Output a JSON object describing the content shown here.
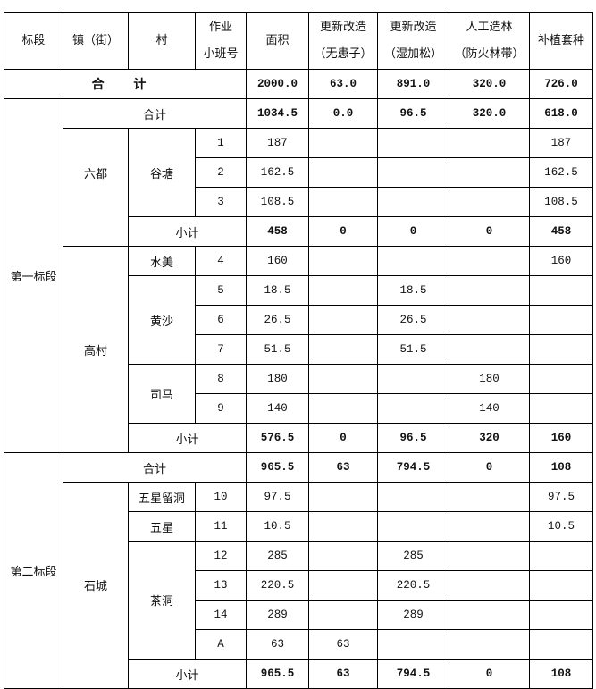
{
  "header": {
    "section": "标段",
    "town": "镇（街）",
    "village": "村",
    "plot_l1": "作业",
    "plot_l2": "小班号",
    "area": "面积",
    "renew1_l1": "更新改造",
    "renew1_l2": "（无患子）",
    "renew2_l1": "更新改造",
    "renew2_l2": "（湿加松）",
    "artificial_l1": "人工造林",
    "artificial_l2": "（防火林带）",
    "replant": "补植套种"
  },
  "grand_total": {
    "label": "合 计",
    "area": "2000.0",
    "renew1": "63.0",
    "renew2": "891.0",
    "artificial": "320.0",
    "replant": "726.0"
  },
  "s1": {
    "name": "第一标段",
    "total": {
      "label": "合计",
      "area": "1034.5",
      "renew1": "0.0",
      "renew2": "96.5",
      "artificial": "320.0",
      "replant": "618.0"
    },
    "t1": {
      "name": "六都",
      "v1": "谷塘",
      "rows": [
        {
          "plot": "1",
          "area": "187",
          "replant": "187"
        },
        {
          "plot": "2",
          "area": "162.5",
          "replant": "162.5"
        },
        {
          "plot": "3",
          "area": "108.5",
          "replant": "108.5"
        }
      ],
      "sub": {
        "label": "小计",
        "area": "458",
        "renew1": "0",
        "renew2": "0",
        "artificial": "0",
        "replant": "458"
      }
    },
    "t2": {
      "name": "高村",
      "v1": "水美",
      "r4": {
        "plot": "4",
        "area": "160",
        "replant": "160"
      },
      "v2": "黄沙",
      "r5": {
        "plot": "5",
        "area": "18.5",
        "renew2": "18.5"
      },
      "r6": {
        "plot": "6",
        "area": "26.5",
        "renew2": "26.5"
      },
      "r7": {
        "plot": "7",
        "area": "51.5",
        "renew2": "51.5"
      },
      "v3": "司马",
      "r8": {
        "plot": "8",
        "area": "180",
        "artificial": "180"
      },
      "r9": {
        "plot": "9",
        "area": "140",
        "artificial": "140"
      },
      "sub": {
        "label": "小计",
        "area": "576.5",
        "renew1": "0",
        "renew2": "96.5",
        "artificial": "320",
        "replant": "160"
      }
    }
  },
  "s2": {
    "name": "第二标段",
    "total": {
      "label": "合计",
      "area": "965.5",
      "renew1": "63",
      "renew2": "794.5",
      "artificial": "0",
      "replant": "108"
    },
    "t1": {
      "name": "石城",
      "v1": "五星留洞",
      "r10": {
        "plot": "10",
        "area": "97.5",
        "replant": "97.5"
      },
      "v2": "五星",
      "r11": {
        "plot": "11",
        "area": "10.5",
        "replant": "10.5"
      },
      "v3": "茶洞",
      "r12": {
        "plot": "12",
        "area": "285",
        "renew2": "285"
      },
      "r13": {
        "plot": "13",
        "area": "220.5",
        "renew2": "220.5"
      },
      "r14": {
        "plot": "14",
        "area": "289",
        "renew2": "289"
      },
      "rA": {
        "plot": "A",
        "area": "63",
        "renew1": "63"
      },
      "sub": {
        "label": "小计",
        "area": "965.5",
        "renew1": "63",
        "renew2": "794.5",
        "artificial": "0",
        "replant": "108"
      }
    }
  }
}
